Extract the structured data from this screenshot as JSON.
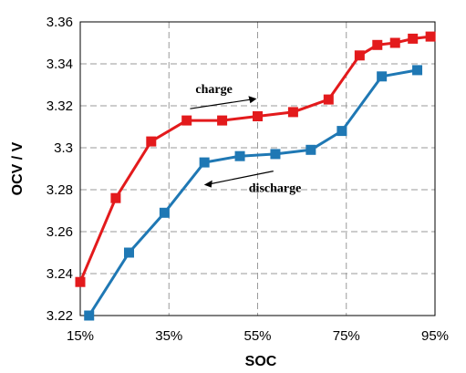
{
  "chart_data": {
    "type": "line",
    "xlabel": "SOC",
    "ylabel": "OCV / V",
    "xlim": [
      15,
      95
    ],
    "ylim": [
      3.22,
      3.36
    ],
    "x_ticks": [
      15,
      35,
      55,
      75,
      95
    ],
    "x_tick_labels": [
      "15%",
      "35%",
      "55%",
      "75%",
      "95%"
    ],
    "y_ticks": [
      3.22,
      3.24,
      3.26,
      3.28,
      3.3,
      3.32,
      3.34,
      3.36
    ],
    "y_tick_labels": [
      "3.22",
      "3.24",
      "3.26",
      "3.28",
      "3.3",
      "3.32",
      "3.34",
      "3.36"
    ],
    "grid": true,
    "series": [
      {
        "color": "#e31a1c",
        "marker": "square",
        "x": [
          15,
          23,
          31,
          39,
          47,
          55,
          63,
          71,
          78,
          82,
          86,
          90,
          94
        ],
        "y": [
          3.236,
          3.276,
          3.303,
          3.313,
          3.313,
          3.315,
          3.317,
          3.323,
          3.344,
          3.349,
          3.35,
          3.352,
          3.353
        ]
      },
      {
        "color": "#1f78b4",
        "marker": "square",
        "x": [
          17,
          26,
          34,
          43,
          51,
          59,
          67,
          74,
          83,
          91
        ],
        "y": [
          3.22,
          3.25,
          3.269,
          3.293,
          3.296,
          3.297,
          3.299,
          3.308,
          3.334,
          3.337
        ]
      }
    ],
    "annotations": [
      {
        "text": "charge",
        "arrow_to": "right",
        "at_x": 41,
        "at_y": 3.326
      },
      {
        "text": "discharge",
        "arrow_to": "left",
        "at_x": 53,
        "at_y": 3.288
      }
    ]
  }
}
